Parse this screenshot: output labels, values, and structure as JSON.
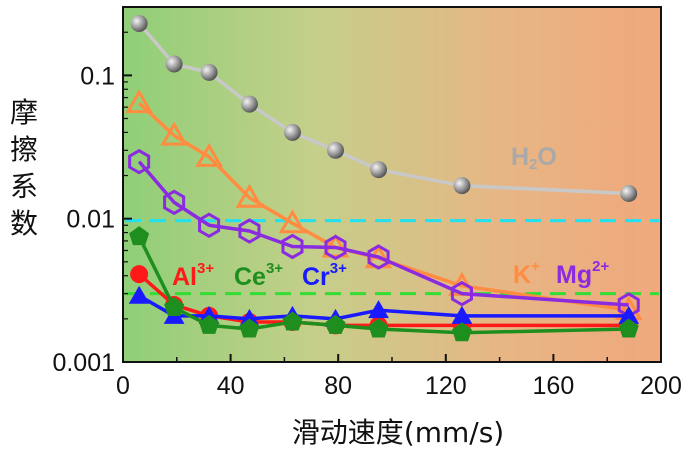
{
  "chart_data": {
    "type": "line",
    "xlabel": "滑动速度(mm/s)",
    "ylabel": "摩擦系数",
    "xlim": [
      0,
      200
    ],
    "ylim": [
      0.001,
      0.3
    ],
    "y_scale": "log",
    "x_ticks": [
      0,
      40,
      80,
      120,
      160,
      200
    ],
    "x_tick_labels": [
      "0",
      "40",
      "80",
      "120",
      "160",
      "200"
    ],
    "y_ticks": [
      0.001,
      0.01,
      0.1
    ],
    "y_tick_labels": [
      "0.001",
      "0.01",
      "0.1"
    ],
    "background": "gradient from green (left) to orange (right)",
    "series": [
      {
        "name": "H2O",
        "label_main": "H",
        "label_sub": "2",
        "label_tail": "O",
        "color": "#a9a9a9",
        "line_color": "#c8c8c8",
        "marker": "sphere",
        "x": [
          6,
          19,
          32,
          47,
          63,
          79,
          95,
          126,
          188
        ],
        "y": [
          0.23,
          0.12,
          0.105,
          0.063,
          0.04,
          0.03,
          0.022,
          0.017,
          0.015
        ]
      },
      {
        "name": "K+",
        "label_main": "K",
        "label_sup": "+",
        "color": "#ff8c40",
        "line_color": "#ff8c40",
        "marker": "triangle-open",
        "x": [
          6,
          19,
          32,
          47,
          63,
          79,
          95,
          126,
          188
        ],
        "y": [
          0.064,
          0.038,
          0.027,
          0.014,
          0.0093,
          0.0063,
          0.0053,
          0.0034,
          0.0023
        ]
      },
      {
        "name": "Mg2+",
        "label_main": "Mg",
        "label_sup": "2+",
        "color": "#8a2be2",
        "line_color": "#8a2be2",
        "marker": "hexagon-open",
        "x": [
          6,
          19,
          32,
          47,
          63,
          79,
          95,
          126,
          188
        ],
        "y": [
          0.025,
          0.013,
          0.009,
          0.0082,
          0.0064,
          0.0063,
          0.0054,
          0.003,
          0.0025
        ]
      },
      {
        "name": "Al3+",
        "label_main": "Al",
        "label_sup": "3+",
        "color": "#ff1a1a",
        "line_color": "#ff1a1a",
        "marker": "circle",
        "x": [
          6,
          19,
          32,
          47,
          63,
          79,
          95,
          126,
          188
        ],
        "y": [
          0.0041,
          0.0025,
          0.0021,
          0.0019,
          0.0019,
          0.0018,
          0.0018,
          0.0018,
          0.0018
        ]
      },
      {
        "name": "Cr3+",
        "label_main": "Cr",
        "label_sup": "3+",
        "color": "#1a1aff",
        "line_color": "#1a1aff",
        "marker": "triangle",
        "x": [
          6,
          19,
          32,
          47,
          63,
          79,
          95,
          126,
          188
        ],
        "y": [
          0.0029,
          0.0021,
          0.0021,
          0.002,
          0.0021,
          0.002,
          0.0023,
          0.0021,
          0.0021
        ]
      },
      {
        "name": "Ce3+",
        "label_main": "Ce",
        "label_sup": "3+",
        "color": "#1e8f1e",
        "line_color": "#1e8f1e",
        "marker": "pentagon",
        "x": [
          6,
          19,
          32,
          47,
          63,
          79,
          95,
          126,
          188
        ],
        "y": [
          0.0075,
          0.0024,
          0.0018,
          0.0017,
          0.0019,
          0.0018,
          0.0017,
          0.0016,
          0.0017
        ]
      }
    ],
    "reference_lines": [
      {
        "y": 0.0097,
        "color": "#22e0f0",
        "style": "dashed"
      },
      {
        "y": 0.003,
        "color": "#33dd33",
        "style": "dashed"
      }
    ]
  }
}
